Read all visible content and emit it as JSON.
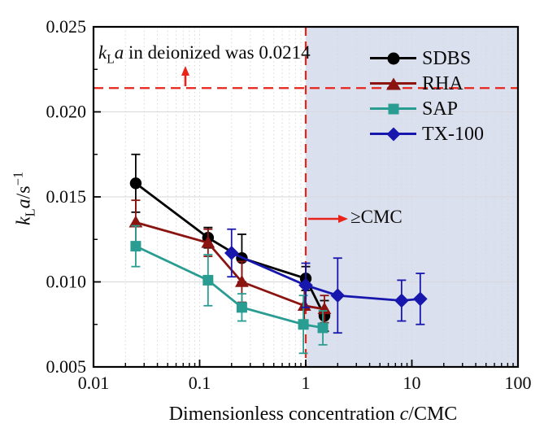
{
  "figure": {
    "background": "#ffffff",
    "shade_color": "#dbe0ee",
    "grid_color": "#d7d7dc",
    "axis_color": "#000000",
    "text_color": "#0a0a0a",
    "ref_color": "#e8231a"
  },
  "chart_data": {
    "type": "line",
    "x_axis": {
      "scale": "log",
      "min": 0.01,
      "max": 100,
      "ticks": [
        0.01,
        0.1,
        1,
        10,
        100
      ],
      "tick_labels": [
        "0.01",
        "0.1",
        "1",
        "10",
        "100"
      ],
      "title_prefix": "Dimensionless concentration ",
      "title_italic": "c",
      "title_suffix": "/CMC"
    },
    "y_axis": {
      "min": 0.005,
      "max": 0.025,
      "ticks": [
        0.005,
        0.01,
        0.015,
        0.02,
        0.025
      ],
      "tick_labels": [
        "0.005",
        "0.010",
        "0.015",
        "0.020",
        "0.025"
      ],
      "minor_step": 0.0025,
      "title_k": "k",
      "title_k_sub": "L",
      "title_a": "a",
      "title_unit": "/s",
      "title_unit_sup": "−1"
    },
    "reference": {
      "deionized_kla": 0.0214,
      "cmc_x": 1,
      "shaded_from": 1,
      "shaded_to": 100
    },
    "legend_position": "top-right-inside",
    "grid": "on",
    "series": [
      {
        "name": "SDBS",
        "color": "#000000",
        "marker": "circle",
        "x": [
          0.025,
          0.12,
          0.25,
          1.0,
          1.5
        ],
        "y": [
          0.0158,
          0.0126,
          0.0114,
          0.0102,
          0.008
        ],
        "yerr": [
          0.0017,
          0.0006,
          0.0014,
          0.0007,
          0.0009
        ]
      },
      {
        "name": "RHA",
        "color": "#8b1411",
        "marker": "triangle",
        "x": [
          0.025,
          0.12,
          0.25,
          0.97,
          1.5
        ],
        "y": [
          0.0135,
          0.0123,
          0.01,
          0.0086,
          0.0084
        ],
        "yerr": [
          0.0013,
          0.0008,
          0.0012,
          0.0012,
          0.0008
        ]
      },
      {
        "name": "SAP",
        "color": "#2a9d92",
        "marker": "square",
        "x": [
          0.025,
          0.12,
          0.25,
          0.95,
          1.45
        ],
        "y": [
          0.0121,
          0.0101,
          0.0085,
          0.0075,
          0.0073
        ],
        "yerr": [
          0.0012,
          0.0015,
          0.0008,
          0.0017,
          0.001
        ]
      },
      {
        "name": "TX-100",
        "color": "#1717ae",
        "marker": "diamond",
        "x": [
          0.2,
          1.0,
          2.0,
          8.0,
          12.0
        ],
        "y": [
          0.0117,
          0.0098,
          0.0092,
          0.0089,
          0.009
        ],
        "yerr": [
          0.0014,
          0.0013,
          0.0022,
          0.0012,
          0.0015
        ]
      }
    ]
  },
  "annotations": {
    "deionized": {
      "k": "k",
      "k_sub": "L",
      "a": "a",
      "rest": " in deionized was 0.0214"
    },
    "cmc": "≥CMC"
  }
}
